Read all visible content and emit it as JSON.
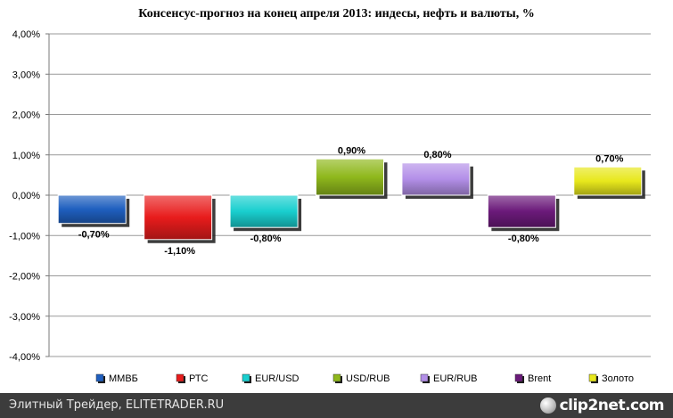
{
  "chart_data": {
    "type": "bar",
    "title": "Консенсус-прогноз на конец апреля 2013: индесы, нефть и валюты, %",
    "categories": [
      "ММВБ",
      "РТС",
      "EUR/USD",
      "USD/RUB",
      "EUR/RUB",
      "Brent",
      "Золото"
    ],
    "values": [
      -0.7,
      -1.1,
      -0.8,
      0.9,
      0.8,
      -0.8,
      0.7
    ],
    "data_labels": [
      "-0,70%",
      "-1,10%",
      "-0,80%",
      "0,90%",
      "0,80%",
      "-0,80%",
      "0,70%"
    ],
    "colors": [
      "#1f5fbf",
      "#e81c1c",
      "#19cfcf",
      "#8fb81c",
      "#b38fe8",
      "#6b1a7a",
      "#e8e81c"
    ],
    "ylim": [
      -4,
      4
    ],
    "yticks": [
      4,
      3,
      2,
      1,
      0,
      -1,
      -2,
      -3,
      -4
    ],
    "ytick_labels": [
      "4,00%",
      "3,00%",
      "2,00%",
      "1,00%",
      "0,00%",
      "-1,00%",
      "-2,00%",
      "-3,00%",
      "-4,00%"
    ],
    "grid": true,
    "legend_position": "bottom"
  },
  "footer": {
    "source": "Элитный Трейдер, ELITETRADER.RU",
    "logo": "clip2net.com"
  }
}
